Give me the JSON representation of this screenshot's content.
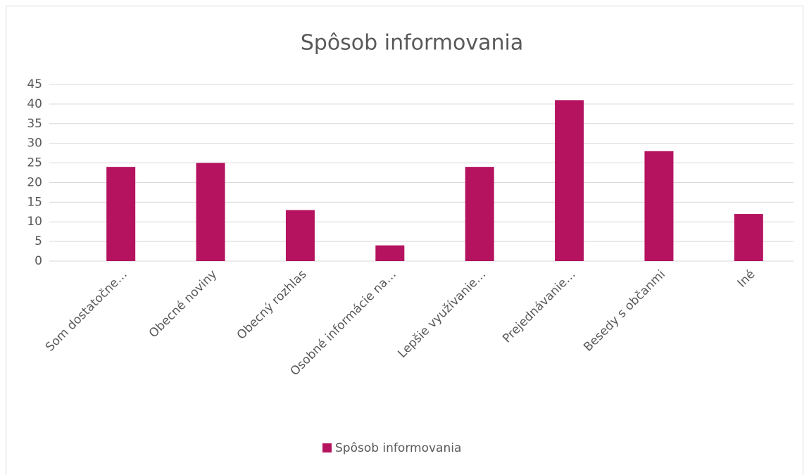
{
  "chart_data": {
    "type": "bar",
    "title": "Spôsob informovania",
    "categories": [
      "Som dostatočne…",
      "Obecné noviny",
      "Obecný rozhlas",
      "Osobné informácie na…",
      "Lepšie využívanie…",
      "Prejednávanie…",
      "Besedy s občanmi",
      "Iné"
    ],
    "series": [
      {
        "name": "Spôsob informovania",
        "color": "#b5135f",
        "values": [
          24,
          25,
          13,
          4,
          24,
          41,
          28,
          12
        ]
      }
    ],
    "ylim": [
      0,
      45
    ],
    "yticks": [
      0,
      5,
      10,
      15,
      20,
      25,
      30,
      35,
      40,
      45
    ],
    "grid": true,
    "legend": "bottom"
  }
}
